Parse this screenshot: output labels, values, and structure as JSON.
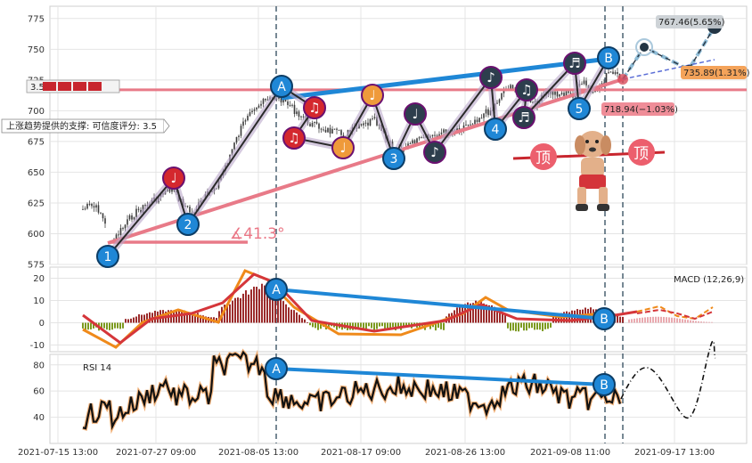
{
  "colors": {
    "up": "#e87a88",
    "blue": "#1f87d6",
    "red": "#d5363a",
    "orange": "#ef8a1a",
    "olive": "#7c9a1f",
    "darkbar": "#9b2b2b",
    "navy": "#233544"
  },
  "labels": {
    "angle": "∡41.3°",
    "support_box": "上涨趋势提供的支撑: 可信度评分: 3.5",
    "score_mini": "3.5",
    "target_up": "767.46(5.65%)",
    "target_mid": "735.89(1.31%)",
    "target_low": "718.94(−1.03%)",
    "macd_title": "MACD (12,26,9)",
    "rsi_title": "RSI 14",
    "top_char": "顶",
    "note_glyph": "♪",
    "note2_glyph": "♩",
    "note3_glyph": "♫",
    "note4_glyph": "♬"
  },
  "chart_data": [
    {
      "type": "line",
      "title": "",
      "ylim": [
        575,
        785
      ],
      "yticks": [
        575,
        600,
        625,
        650,
        675,
        700,
        725,
        750,
        775
      ],
      "x_dates": [
        "2021-07-15 13:00",
        "2021-07-27 09:00",
        "2021-08-05 13:00",
        "2021-08-17 09:00",
        "2021-08-26 13:00",
        "2021-09-08 11:00",
        "2021-09-17 13:00"
      ],
      "wave_points": [
        {
          "label": "1",
          "value": 585
        },
        {
          "label": "2",
          "value": 602
        },
        {
          "label": "A",
          "value": 717
        },
        {
          "label": "3",
          "value": 663
        },
        {
          "label": "4",
          "value": 697
        },
        {
          "label": "5",
          "value": 712
        },
        {
          "label": "B",
          "value": 748
        }
      ],
      "support_level": 717,
      "targets": [
        767.46,
        735.89,
        718.94
      ]
    },
    {
      "type": "line",
      "title": "MACD (12,26,9)",
      "ylim": [
        -13,
        25
      ],
      "yticks": [
        -10,
        0,
        10,
        20
      ]
    },
    {
      "type": "line",
      "title": "RSI 14",
      "ylim": [
        20,
        88
      ],
      "yticks": [
        40,
        60,
        80
      ]
    }
  ]
}
